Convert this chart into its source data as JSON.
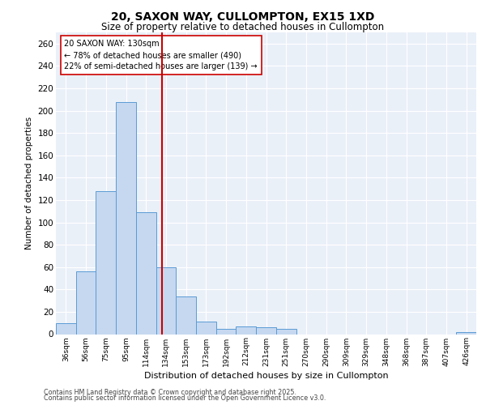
{
  "title_line1": "20, SAXON WAY, CULLOMPTON, EX15 1XD",
  "title_line2": "Size of property relative to detached houses in Cullompton",
  "xlabel": "Distribution of detached houses by size in Cullompton",
  "ylabel": "Number of detached properties",
  "categories": [
    "36sqm",
    "56sqm",
    "75sqm",
    "95sqm",
    "114sqm",
    "134sqm",
    "153sqm",
    "173sqm",
    "192sqm",
    "212sqm",
    "231sqm",
    "251sqm",
    "270sqm",
    "290sqm",
    "309sqm",
    "329sqm",
    "348sqm",
    "368sqm",
    "387sqm",
    "407sqm",
    "426sqm"
  ],
  "values": [
    10,
    56,
    128,
    208,
    109,
    60,
    34,
    11,
    5,
    7,
    6,
    5,
    0,
    0,
    0,
    0,
    0,
    0,
    0,
    0,
    2
  ],
  "bar_color": "#c5d8f0",
  "bar_edge_color": "#5b9bd5",
  "vline_color": "#cc0000",
  "annotation_text": "20 SAXON WAY: 130sqm\n← 78% of detached houses are smaller (490)\n22% of semi-detached houses are larger (139) →",
  "annotation_box_color": "#ffffff",
  "annotation_box_edge_color": "#cc0000",
  "ylim": [
    0,
    270
  ],
  "yticks": [
    0,
    20,
    40,
    60,
    80,
    100,
    120,
    140,
    160,
    180,
    200,
    220,
    240,
    260
  ],
  "bg_color": "#eaf0f8",
  "footer_line1": "Contains HM Land Registry data © Crown copyright and database right 2025.",
  "footer_line2": "Contains public sector information licensed under the Open Government Licence v3.0."
}
